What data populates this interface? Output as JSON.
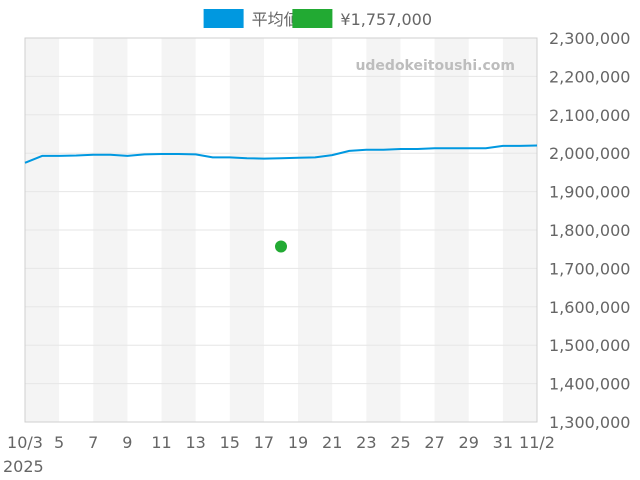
{
  "chart_data": {
    "type": "line",
    "title": "",
    "xlabel": "",
    "ylabel": "",
    "legend_position": "top-center",
    "grid": true,
    "x_start_date": "2025-10-03",
    "x_end_date": "2025-11-02",
    "x_tick_labels": [
      "10/3",
      "5",
      "7",
      "9",
      "11",
      "13",
      "15",
      "17",
      "19",
      "21",
      "23",
      "25",
      "27",
      "29",
      "31",
      "11/2"
    ],
    "x_year_label": "2025",
    "ylim": [
      1300000,
      2300000
    ],
    "y_tick_labels": [
      "1,300,000",
      "1,400,000",
      "1,500,000",
      "1,600,000",
      "1,700,000",
      "1,800,000",
      "1,900,000",
      "2,000,000",
      "2,100,000",
      "2,200,000",
      "2,300,000"
    ],
    "series": [
      {
        "name": "平均値",
        "color": "#0098e0",
        "kind": "line",
        "x": [
          "2025-10-03",
          "2025-10-04",
          "2025-10-05",
          "2025-10-06",
          "2025-10-07",
          "2025-10-08",
          "2025-10-09",
          "2025-10-10",
          "2025-10-11",
          "2025-10-12",
          "2025-10-13",
          "2025-10-14",
          "2025-10-15",
          "2025-10-16",
          "2025-10-17",
          "2025-10-18",
          "2025-10-19",
          "2025-10-20",
          "2025-10-21",
          "2025-10-22",
          "2025-10-23",
          "2025-10-24",
          "2025-10-25",
          "2025-10-26",
          "2025-10-27",
          "2025-10-28",
          "2025-10-29",
          "2025-10-30",
          "2025-10-31",
          "2025-11-01",
          "2025-11-02"
        ],
        "values": [
          1975000,
          1993000,
          1993000,
          1994000,
          1996000,
          1996000,
          1993000,
          1997000,
          1998000,
          1998000,
          1997000,
          1989000,
          1989000,
          1987000,
          1986000,
          1987000,
          1988000,
          1989000,
          1995000,
          2006000,
          2009000,
          2009000,
          2011000,
          2011000,
          2013000,
          2013000,
          2013000,
          2013000,
          2019000,
          2019000,
          2020000
        ]
      },
      {
        "name": "¥1,757,000",
        "color": "#22aa33",
        "kind": "point",
        "x": [
          "2025-10-18"
        ],
        "values": [
          1757000
        ]
      }
    ],
    "watermark": "udedokeitoushi.com"
  }
}
